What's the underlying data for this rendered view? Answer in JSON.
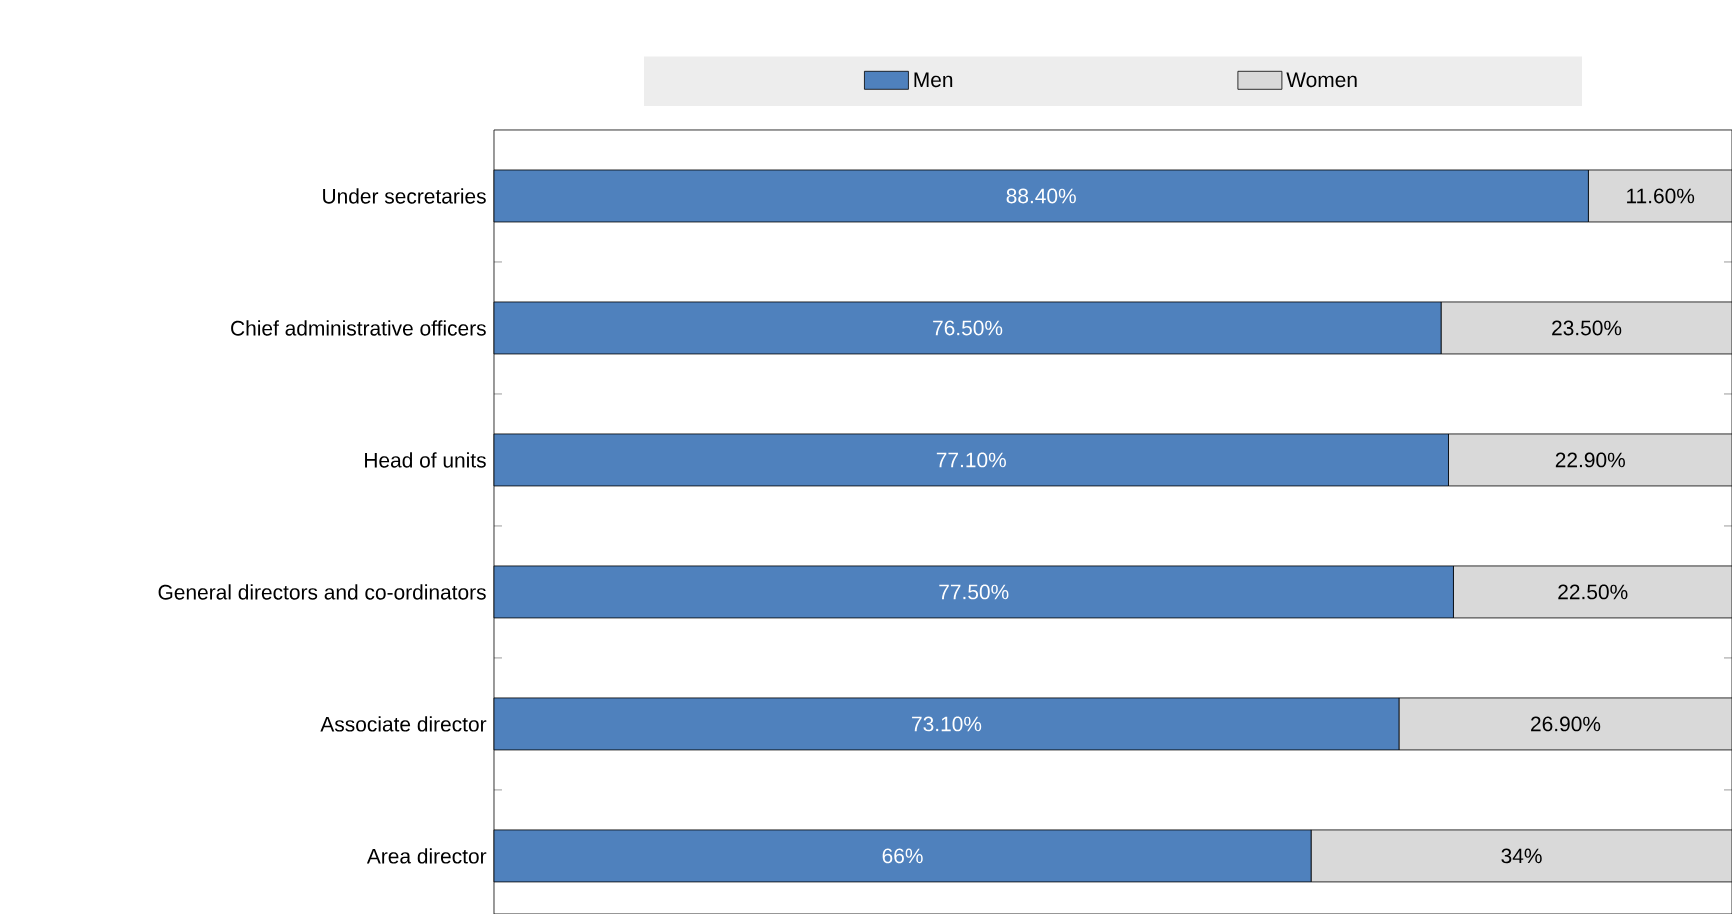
{
  "chart_data": {
    "type": "bar",
    "orientation": "horizontal",
    "stacked": true,
    "legend": "top",
    "tick_labels": "y",
    "xlim": [
      0,
      100
    ],
    "categories": [
      "Under secretaries",
      "Chief administrative officers",
      "Head of units",
      "General directors and co-ordinators",
      "Associate director",
      "Area director"
    ],
    "series": [
      {
        "name": "Men",
        "color": "#4f81bd",
        "values": [
          88.4,
          76.5,
          77.1,
          77.5,
          73.1,
          66
        ],
        "value_labels": [
          "88.40%",
          "76.50%",
          "77.10%",
          "77.50%",
          "73.10%",
          "66%"
        ]
      },
      {
        "name": "Women",
        "color": "#d9d9d9",
        "values": [
          11.6,
          23.5,
          22.9,
          22.5,
          26.9,
          34
        ],
        "value_labels": [
          "11.60%",
          "23.50%",
          "22.90%",
          "22.50%",
          "26.90%",
          "34%"
        ]
      }
    ]
  }
}
